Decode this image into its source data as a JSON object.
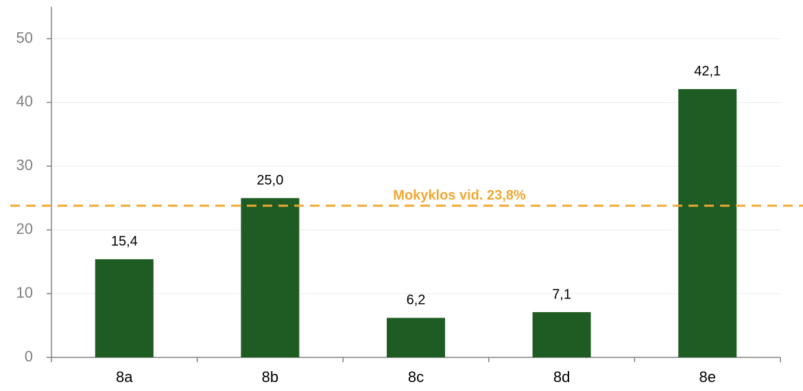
{
  "chart_data": {
    "type": "bar",
    "categories": [
      "8a",
      "8b",
      "8c",
      "8d",
      "8e"
    ],
    "values": [
      15.4,
      25.0,
      6.2,
      7.1,
      42.1
    ],
    "value_labels": [
      "15,4",
      "25,0",
      "6,2",
      "7,1",
      "42,1"
    ],
    "color": "#1e5c23",
    "ylim": [
      0,
      55
    ],
    "yticks": [
      0,
      10,
      20,
      30,
      40,
      50
    ],
    "grid": true,
    "reference_line": {
      "value": 23.8,
      "label": "Mokyklos vid. 23,8%",
      "color": "#f0a830"
    }
  }
}
